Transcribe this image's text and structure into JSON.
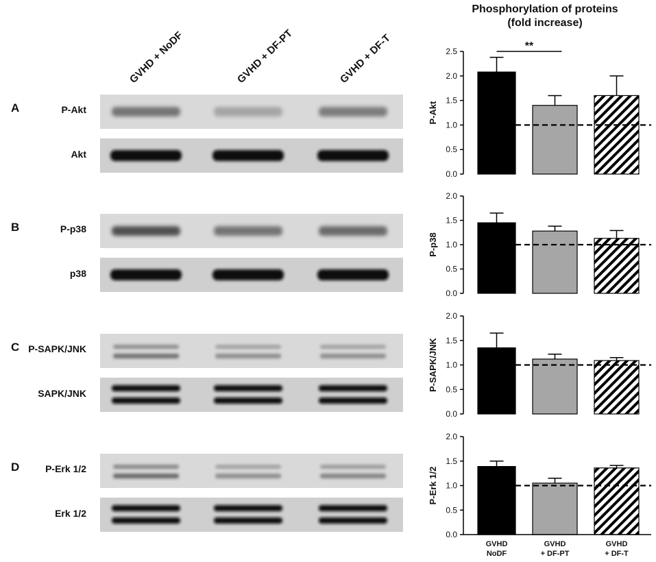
{
  "figure": {
    "title_line1": "Phosphorylation of proteins",
    "title_line2": "(fold increase)"
  },
  "lanes": [
    "GVHD + NoDF",
    "GVHD + DF-PT",
    "GVHD + DF-T"
  ],
  "panels": [
    {
      "letter": "A",
      "phospho_label": "P-Akt",
      "total_label": "Akt"
    },
    {
      "letter": "B",
      "phospho_label": "P-p38",
      "total_label": "p38"
    },
    {
      "letter": "C",
      "phospho_label": "P-SAPK/JNK",
      "total_label": "SAPK/JNK"
    },
    {
      "letter": "D",
      "phospho_label": "P-Erk 1/2",
      "total_label": "Erk 1/2"
    }
  ],
  "blot_bands": {
    "phospho_intensity": [
      [
        0.55,
        0.28,
        0.5
      ],
      [
        0.75,
        0.55,
        0.6
      ],
      [
        0.55,
        0.4,
        0.4
      ],
      [
        0.6,
        0.4,
        0.45
      ]
    ],
    "total_double": [
      false,
      false,
      true,
      true
    ]
  },
  "chart_data": {
    "type": "bar",
    "categories": [
      "GVHD\nNoDF",
      "GVHD\n+ DF-PT",
      "GVHD\n+ DF-T"
    ],
    "category_lines": [
      [
        "GVHD",
        "NoDF"
      ],
      [
        "GVHD",
        "+ DF-PT"
      ],
      [
        "GVHD",
        "+ DF-T"
      ]
    ],
    "ylim": [
      0,
      2.5
    ],
    "ylim_upper": [
      0,
      2.0
    ],
    "yticks_first": [
      "0.0",
      "0.5",
      "1.0",
      "1.5",
      "2.0",
      "2.5"
    ],
    "yticks_other": [
      "0.0",
      "0.5",
      "1.0",
      "1.5",
      "2.0"
    ],
    "reference_line": 1.0,
    "bar_styles": [
      "solid-black",
      "gray",
      "hatched"
    ],
    "colors": {
      "bar1": "#000000",
      "bar2": "#a6a6a6",
      "bar3_hatch": "#000000",
      "bar3_bg": "#ffffff"
    },
    "subplots": [
      {
        "ylabel": "P-Akt",
        "values": [
          2.08,
          1.4,
          1.6
        ],
        "errors": [
          0.3,
          0.2,
          0.4
        ],
        "significance": {
          "text": "**",
          "from": 0,
          "to": 1
        }
      },
      {
        "ylabel": "P-p38",
        "values": [
          1.45,
          1.28,
          1.13
        ],
        "errors": [
          0.2,
          0.1,
          0.16
        ]
      },
      {
        "ylabel": "P-SAPK/JNK",
        "values": [
          1.35,
          1.12,
          1.09
        ],
        "errors": [
          0.3,
          0.1,
          0.06
        ]
      },
      {
        "ylabel": "P-Erk 1/2",
        "values": [
          1.39,
          1.05,
          1.36
        ],
        "errors": [
          0.11,
          0.1,
          0.05
        ]
      }
    ]
  }
}
